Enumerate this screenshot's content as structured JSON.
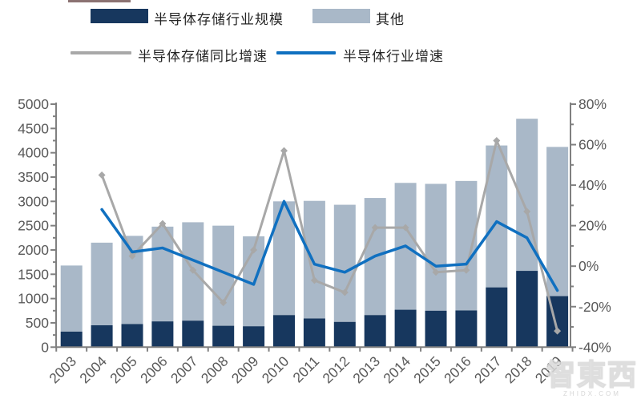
{
  "legend": {
    "bar1_label": "半导体存储行业规模",
    "bar2_label": "其他",
    "line1_label": "半导体存储同比增速",
    "line2_label": "半导体行业增速"
  },
  "watermark": {
    "text": "智東西",
    "subtext": "ZHIDX.COM"
  },
  "colors": {
    "memory_bar": "#17375e",
    "other_bar": "#a9b8c8",
    "memory_growth_line": "#a8a8a8",
    "semi_growth_line": "#1070c0",
    "axis_line": "#808080",
    "axis_text": "#595959"
  },
  "chart_data": {
    "type": "bar",
    "subtype": "stacked-bars-with-lines",
    "categories": [
      "2003",
      "2004",
      "2005",
      "2006",
      "2007",
      "2008",
      "2009",
      "2010",
      "2011",
      "2012",
      "2013",
      "2014",
      "2015",
      "2016",
      "2017",
      "2018",
      "2019"
    ],
    "series": [
      {
        "name": "半导体存储行业规模",
        "type": "bar",
        "stack": "total",
        "axis": "left",
        "color": "#17375e",
        "values": [
          320,
          450,
          475,
          530,
          545,
          440,
          430,
          660,
          590,
          520,
          660,
          770,
          750,
          755,
          1230,
          1570,
          1050
        ]
      },
      {
        "name": "其他",
        "type": "bar",
        "stack": "total",
        "axis": "left",
        "color": "#a9b8c8",
        "values": [
          1360,
          1700,
          1815,
          1950,
          2025,
          2060,
          1850,
          2340,
          2420,
          2410,
          2410,
          2610,
          2610,
          2665,
          2920,
          3130,
          3070
        ]
      },
      {
        "name": "半导体存储同比增速",
        "type": "line",
        "axis": "right",
        "color": "#a8a8a8",
        "marker": "diamond",
        "values": [
          null,
          45,
          5,
          21,
          -2,
          -18,
          8,
          57,
          -7,
          -13,
          19,
          19,
          -3,
          -2,
          62,
          27,
          -32
        ]
      },
      {
        "name": "半导体行业增速",
        "type": "line",
        "axis": "right",
        "color": "#1070c0",
        "marker": "none",
        "values": [
          null,
          28,
          7,
          9,
          3,
          -3,
          -9,
          32,
          1,
          -3,
          5,
          10,
          0,
          1,
          22,
          14,
          -12
        ]
      }
    ],
    "left_axis": {
      "min": 0,
      "max": 5000,
      "step": 500,
      "minor_step": 250,
      "labels": [
        "0",
        "500",
        "1000",
        "1500",
        "2000",
        "2500",
        "3000",
        "3500",
        "4000",
        "4500",
        "5000"
      ]
    },
    "right_axis": {
      "min": -40,
      "max": 80,
      "step": 20,
      "minor_step": 10,
      "labels": [
        "-40%",
        "-20%",
        "0%",
        "20%",
        "40%",
        "60%",
        "80%"
      ]
    },
    "grid": false,
    "legend_position": "top"
  }
}
